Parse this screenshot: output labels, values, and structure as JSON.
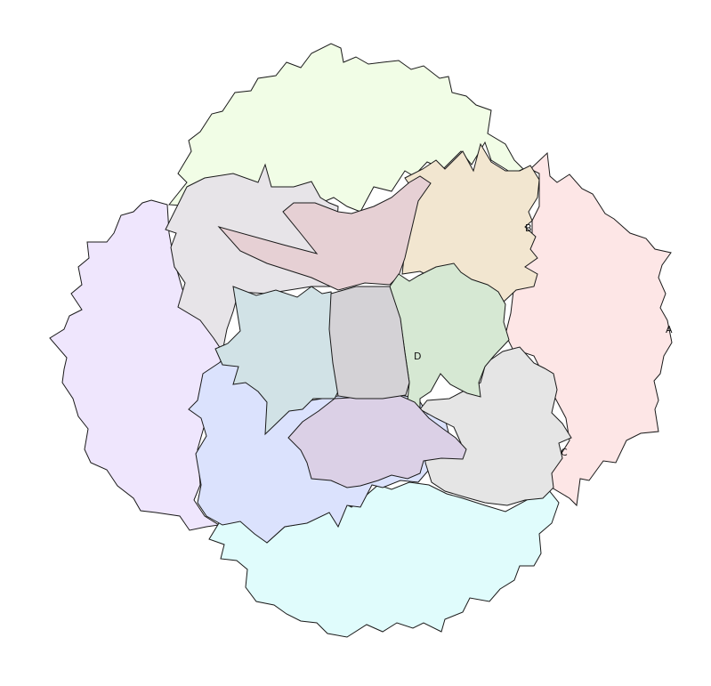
{
  "diagram": {
    "type": "region-map",
    "labels": {
      "a": "A",
      "b": "B",
      "c": "C",
      "d": "D"
    },
    "regions": [
      {
        "id": "top-green",
        "fill": "#f1fde6"
      },
      {
        "id": "left-violet",
        "fill": "#efe6fd"
      },
      {
        "id": "right-pink",
        "fill": "#fde6e6"
      },
      {
        "id": "bottom-cyan",
        "fill": "#e0fcfc"
      },
      {
        "id": "upper-left-grey",
        "fill": "#e7e4e8"
      },
      {
        "id": "upper-right-tan",
        "fill": "#f2e6d0"
      },
      {
        "id": "lower-left-blue",
        "fill": "#dbe2fd"
      },
      {
        "id": "lower-right-grey",
        "fill": "#e5e5e5"
      },
      {
        "id": "center-rose",
        "fill": "#e6d0d4"
      },
      {
        "id": "center-teal",
        "fill": "#d1e2e6"
      },
      {
        "id": "center-green",
        "fill": "#d6e8d3"
      },
      {
        "id": "center-lilac",
        "fill": "#dbd0e6"
      },
      {
        "id": "center-core",
        "fill": "#d4d2d6"
      }
    ]
  }
}
